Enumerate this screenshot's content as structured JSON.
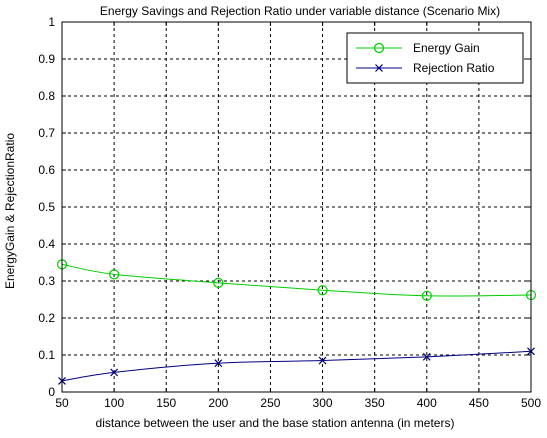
{
  "chart_data": {
    "type": "line",
    "title": "Energy Savings and Rejection Ratio under variable distance (Scenario Mix)",
    "xlabel": "distance between the user and the base station antenna (in meters)",
    "ylabel": "EnergyGain & RejectionRatio",
    "xlim": [
      50,
      500
    ],
    "ylim": [
      0,
      1
    ],
    "x_ticks": [
      50,
      100,
      150,
      200,
      250,
      300,
      350,
      400,
      450,
      500
    ],
    "y_ticks": [
      0,
      0.1,
      0.2,
      0.3,
      0.4,
      0.5,
      0.6,
      0.7,
      0.8,
      0.9,
      1
    ],
    "grid": true,
    "legend_position": "top-right",
    "series": [
      {
        "name": "Energy Gain",
        "color": "#00cc00",
        "marker": "circle",
        "x": [
          50,
          100,
          200,
          300,
          400,
          500
        ],
        "values": [
          0.345,
          0.318,
          0.295,
          0.275,
          0.26,
          0.262
        ]
      },
      {
        "name": "Rejection Ratio",
        "color": "#000080",
        "marker": "x",
        "x": [
          50,
          100,
          200,
          300,
          400,
          500
        ],
        "values": [
          0.03,
          0.053,
          0.078,
          0.085,
          0.095,
          0.11
        ]
      }
    ]
  }
}
